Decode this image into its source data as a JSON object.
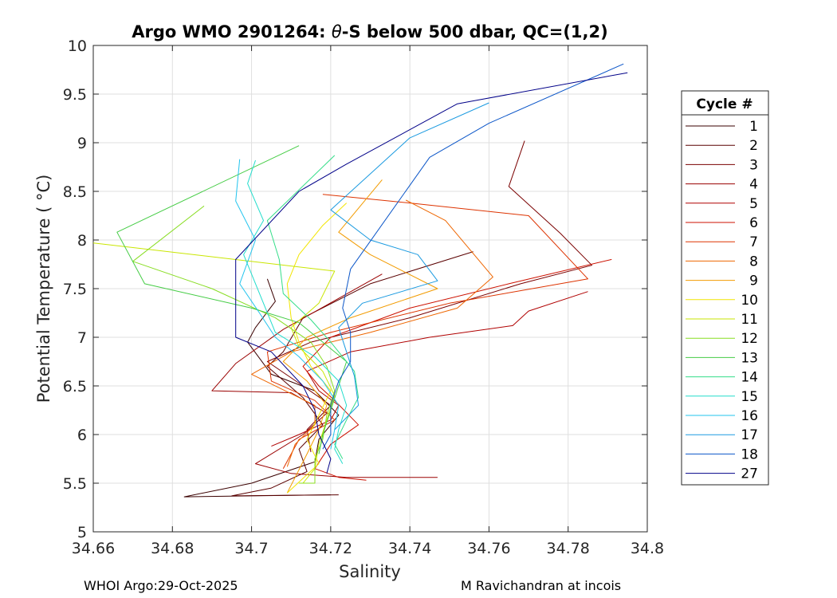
{
  "chart_data": {
    "type": "line",
    "title_prefix": "Argo WMO 2901264: ",
    "title_theta": "θ",
    "title_suffix": "-S below 500 dbar,  QC=(1,2)",
    "xlabel": "Salinity",
    "ylabel": "Potential Temperature ( °C)",
    "xlim": [
      34.66,
      34.8
    ],
    "ylim": [
      5,
      10
    ],
    "xticks": [
      34.66,
      34.68,
      34.7,
      34.72,
      34.74,
      34.76,
      34.78,
      34.8
    ],
    "xtick_labels": [
      "34.66",
      "34.68",
      "34.7",
      "34.72",
      "34.74",
      "34.76",
      "34.78",
      "34.8"
    ],
    "yticks": [
      5,
      5.5,
      6,
      6.5,
      7,
      7.5,
      8,
      8.5,
      9,
      9.5,
      10
    ],
    "ytick_labels": [
      "5",
      "5.5",
      "6",
      "6.5",
      "7",
      "7.5",
      "8",
      "8.5",
      "9",
      "9.5",
      "10"
    ],
    "grid": true,
    "legend_title": "Cycle #",
    "legend_position": "outside-right",
    "series": [
      {
        "name": "1",
        "color": "#3a0000",
        "points": [
          [
            34.704,
            7.6
          ],
          [
            34.706,
            7.37
          ],
          [
            34.701,
            7.1
          ],
          [
            34.699,
            6.95
          ],
          [
            34.705,
            6.62
          ],
          [
            34.716,
            6.45
          ],
          [
            34.722,
            6.2
          ],
          [
            34.717,
            5.95
          ],
          [
            34.716,
            5.72
          ],
          [
            34.7,
            5.5
          ],
          [
            34.683,
            5.36
          ],
          [
            34.7,
            5.37
          ],
          [
            34.72,
            5.38
          ]
        ]
      },
      {
        "name": "2",
        "color": "#5a0000",
        "points": [
          [
            34.756,
            7.88
          ],
          [
            34.73,
            7.55
          ],
          [
            34.713,
            7.2
          ],
          [
            34.708,
            6.85
          ],
          [
            34.704,
            6.7
          ],
          [
            34.713,
            6.38
          ],
          [
            34.718,
            6.1
          ],
          [
            34.712,
            5.85
          ],
          [
            34.714,
            5.62
          ],
          [
            34.705,
            5.45
          ],
          [
            34.695,
            5.37
          ],
          [
            34.722,
            5.38
          ]
        ]
      },
      {
        "name": "3",
        "color": "#7a0000",
        "points": [
          [
            34.769,
            9.02
          ],
          [
            34.765,
            8.55
          ],
          [
            34.778,
            8.07
          ],
          [
            34.786,
            7.74
          ],
          [
            34.768,
            7.55
          ],
          [
            34.74,
            7.2
          ],
          [
            34.715,
            6.95
          ],
          [
            34.704,
            6.75
          ],
          [
            34.713,
            6.5
          ],
          [
            34.72,
            6.3
          ],
          [
            34.714,
            6.05
          ],
          [
            34.715,
            5.82
          ]
        ]
      },
      {
        "name": "4",
        "color": "#9a0000",
        "points": [
          [
            34.733,
            7.65
          ],
          [
            34.708,
            7.08
          ],
          [
            34.696,
            6.73
          ],
          [
            34.69,
            6.45
          ],
          [
            34.71,
            6.43
          ],
          [
            34.719,
            6.22
          ],
          [
            34.713,
            6.0
          ],
          [
            34.701,
            5.7
          ],
          [
            34.71,
            5.6
          ],
          [
            34.724,
            5.56
          ],
          [
            34.747,
            5.56
          ]
        ]
      },
      {
        "name": "5",
        "color": "#b00000",
        "points": [
          [
            34.785,
            7.47
          ],
          [
            34.77,
            7.27
          ],
          [
            34.766,
            7.12
          ],
          [
            34.745,
            7.0
          ],
          [
            34.725,
            6.85
          ],
          [
            34.714,
            6.65
          ],
          [
            34.717,
            6.45
          ],
          [
            34.722,
            6.3
          ],
          [
            34.72,
            6.15
          ],
          [
            34.712,
            6.0
          ],
          [
            34.705,
            5.88
          ]
        ]
      },
      {
        "name": "6",
        "color": "#cc1100",
        "points": [
          [
            34.791,
            7.8
          ],
          [
            34.765,
            7.55
          ],
          [
            34.74,
            7.3
          ],
          [
            34.72,
            7.0
          ],
          [
            34.713,
            6.7
          ],
          [
            34.717,
            6.5
          ],
          [
            34.721,
            6.35
          ],
          [
            34.727,
            6.1
          ],
          [
            34.72,
            5.9
          ],
          [
            34.716,
            5.65
          ],
          [
            34.722,
            5.56
          ],
          [
            34.729,
            5.53
          ]
        ]
      },
      {
        "name": "7",
        "color": "#dd3300",
        "points": [
          [
            34.718,
            8.47
          ],
          [
            34.74,
            8.38
          ],
          [
            34.77,
            8.25
          ],
          [
            34.785,
            7.6
          ],
          [
            34.75,
            7.35
          ],
          [
            34.72,
            7.05
          ],
          [
            34.704,
            6.85
          ],
          [
            34.705,
            6.55
          ],
          [
            34.716,
            6.35
          ],
          [
            34.721,
            6.15
          ],
          [
            34.712,
            5.95
          ],
          [
            34.708,
            5.65
          ]
        ]
      },
      {
        "name": "8",
        "color": "#ee6600",
        "points": [
          [
            34.739,
            8.41
          ],
          [
            34.749,
            8.2
          ],
          [
            34.761,
            7.62
          ],
          [
            34.752,
            7.3
          ],
          [
            34.73,
            7.05
          ],
          [
            34.71,
            6.85
          ],
          [
            34.7,
            6.62
          ],
          [
            34.707,
            6.48
          ],
          [
            34.716,
            6.3
          ],
          [
            34.716,
            6.1
          ],
          [
            34.711,
            5.9
          ],
          [
            34.709,
            5.67
          ]
        ]
      },
      {
        "name": "9",
        "color": "#f29b00",
        "points": [
          [
            34.733,
            8.62
          ],
          [
            34.722,
            8.08
          ],
          [
            34.73,
            7.85
          ],
          [
            34.747,
            7.5
          ],
          [
            34.725,
            7.2
          ],
          [
            34.714,
            7.0
          ],
          [
            34.708,
            6.75
          ],
          [
            34.714,
            6.55
          ],
          [
            34.719,
            6.3
          ],
          [
            34.717,
            6.05
          ],
          [
            34.714,
            5.8
          ],
          [
            34.709,
            5.4
          ]
        ]
      },
      {
        "name": "10",
        "color": "#f2e500",
        "points": [
          [
            34.724,
            8.38
          ],
          [
            34.718,
            8.15
          ],
          [
            34.712,
            7.85
          ],
          [
            34.709,
            7.55
          ],
          [
            34.71,
            7.2
          ],
          [
            34.712,
            6.95
          ],
          [
            34.715,
            6.7
          ],
          [
            34.72,
            6.45
          ],
          [
            34.717,
            6.2
          ],
          [
            34.714,
            5.95
          ],
          [
            34.717,
            5.7
          ],
          [
            34.709,
            5.4
          ]
        ]
      },
      {
        "name": "11",
        "color": "#c9e600",
        "points": [
          [
            34.66,
            7.97
          ],
          [
            34.721,
            7.68
          ],
          [
            34.717,
            7.35
          ],
          [
            34.71,
            7.1
          ],
          [
            34.712,
            6.9
          ],
          [
            34.718,
            6.65
          ],
          [
            34.721,
            6.4
          ],
          [
            34.719,
            6.15
          ],
          [
            34.717,
            5.9
          ],
          [
            34.716,
            5.65
          ],
          [
            34.713,
            5.5
          ]
        ]
      },
      {
        "name": "12",
        "color": "#88dd22",
        "points": [
          [
            34.688,
            8.35
          ],
          [
            34.67,
            7.78
          ],
          [
            34.69,
            7.5
          ],
          [
            34.706,
            7.2
          ],
          [
            34.715,
            6.95
          ],
          [
            34.719,
            6.7
          ],
          [
            34.721,
            6.45
          ],
          [
            34.719,
            6.2
          ],
          [
            34.718,
            5.95
          ],
          [
            34.716,
            5.75
          ],
          [
            34.716,
            5.5
          ],
          [
            34.712,
            5.5
          ]
        ]
      },
      {
        "name": "13",
        "color": "#44cc44",
        "points": [
          [
            34.712,
            8.97
          ],
          [
            34.666,
            8.08
          ],
          [
            34.673,
            7.55
          ],
          [
            34.7,
            7.3
          ],
          [
            34.712,
            7.15
          ],
          [
            34.718,
            6.95
          ],
          [
            34.724,
            6.75
          ],
          [
            34.722,
            6.5
          ],
          [
            34.72,
            6.25
          ],
          [
            34.718,
            6.0
          ],
          [
            34.717,
            5.8
          ]
        ]
      },
      {
        "name": "14",
        "color": "#33dd88",
        "points": [
          [
            34.721,
            8.87
          ],
          [
            34.704,
            8.2
          ],
          [
            34.707,
            7.8
          ],
          [
            34.708,
            7.45
          ],
          [
            34.715,
            7.18
          ],
          [
            34.72,
            6.95
          ],
          [
            34.726,
            6.65
          ],
          [
            34.727,
            6.38
          ],
          [
            34.724,
            6.15
          ],
          [
            34.721,
            5.9
          ],
          [
            34.723,
            5.75
          ]
        ]
      },
      {
        "name": "15",
        "color": "#22ddcc",
        "points": [
          [
            34.701,
            8.82
          ],
          [
            34.699,
            8.58
          ],
          [
            34.703,
            8.2
          ],
          [
            34.698,
            7.85
          ],
          [
            34.703,
            7.35
          ],
          [
            34.706,
            7.05
          ],
          [
            34.716,
            6.8
          ],
          [
            34.722,
            6.55
          ],
          [
            34.724,
            6.3
          ],
          [
            34.722,
            6.05
          ],
          [
            34.721,
            5.85
          ],
          [
            34.723,
            5.7
          ]
        ]
      },
      {
        "name": "16",
        "color": "#22c4ee",
        "points": [
          [
            34.697,
            8.83
          ],
          [
            34.696,
            8.4
          ],
          [
            34.701,
            8.0
          ],
          [
            34.697,
            7.55
          ],
          [
            34.702,
            7.25
          ],
          [
            34.706,
            7.0
          ],
          [
            34.712,
            6.8
          ],
          [
            34.718,
            6.55
          ],
          [
            34.722,
            6.3
          ],
          [
            34.721,
            6.05
          ],
          [
            34.72,
            5.85
          ]
        ]
      },
      {
        "name": "17",
        "color": "#1a9ae0",
        "points": [
          [
            34.76,
            9.41
          ],
          [
            34.74,
            9.05
          ],
          [
            34.72,
            8.31
          ],
          [
            34.73,
            8.0
          ],
          [
            34.742,
            7.85
          ],
          [
            34.747,
            7.58
          ],
          [
            34.728,
            7.35
          ],
          [
            34.722,
            7.1
          ],
          [
            34.724,
            6.85
          ],
          [
            34.726,
            6.6
          ],
          [
            34.727,
            6.3
          ],
          [
            34.721,
            6.05
          ]
        ]
      },
      {
        "name": "18",
        "color": "#0a55c8",
        "points": [
          [
            34.794,
            9.81
          ],
          [
            34.76,
            9.2
          ],
          [
            34.745,
            8.85
          ],
          [
            34.725,
            7.7
          ],
          [
            34.723,
            7.3
          ],
          [
            34.725,
            7.05
          ],
          [
            34.725,
            6.75
          ],
          [
            34.722,
            6.55
          ],
          [
            34.72,
            6.3
          ],
          [
            34.72,
            6.0
          ],
          [
            34.718,
            5.85
          ]
        ]
      },
      {
        "name": "27",
        "color": "#000088",
        "points": [
          [
            34.795,
            9.72
          ],
          [
            34.752,
            9.4
          ],
          [
            34.724,
            8.78
          ],
          [
            34.712,
            8.5
          ],
          [
            34.696,
            7.8
          ],
          [
            34.696,
            7.0
          ],
          [
            34.705,
            6.85
          ],
          [
            34.713,
            6.5
          ],
          [
            34.716,
            6.25
          ],
          [
            34.717,
            6.0
          ],
          [
            34.72,
            5.75
          ],
          [
            34.719,
            5.6
          ]
        ]
      }
    ]
  },
  "footer": {
    "left": "WHOI Argo:29-Oct-2025",
    "right": "M Ravichandran at incois"
  }
}
